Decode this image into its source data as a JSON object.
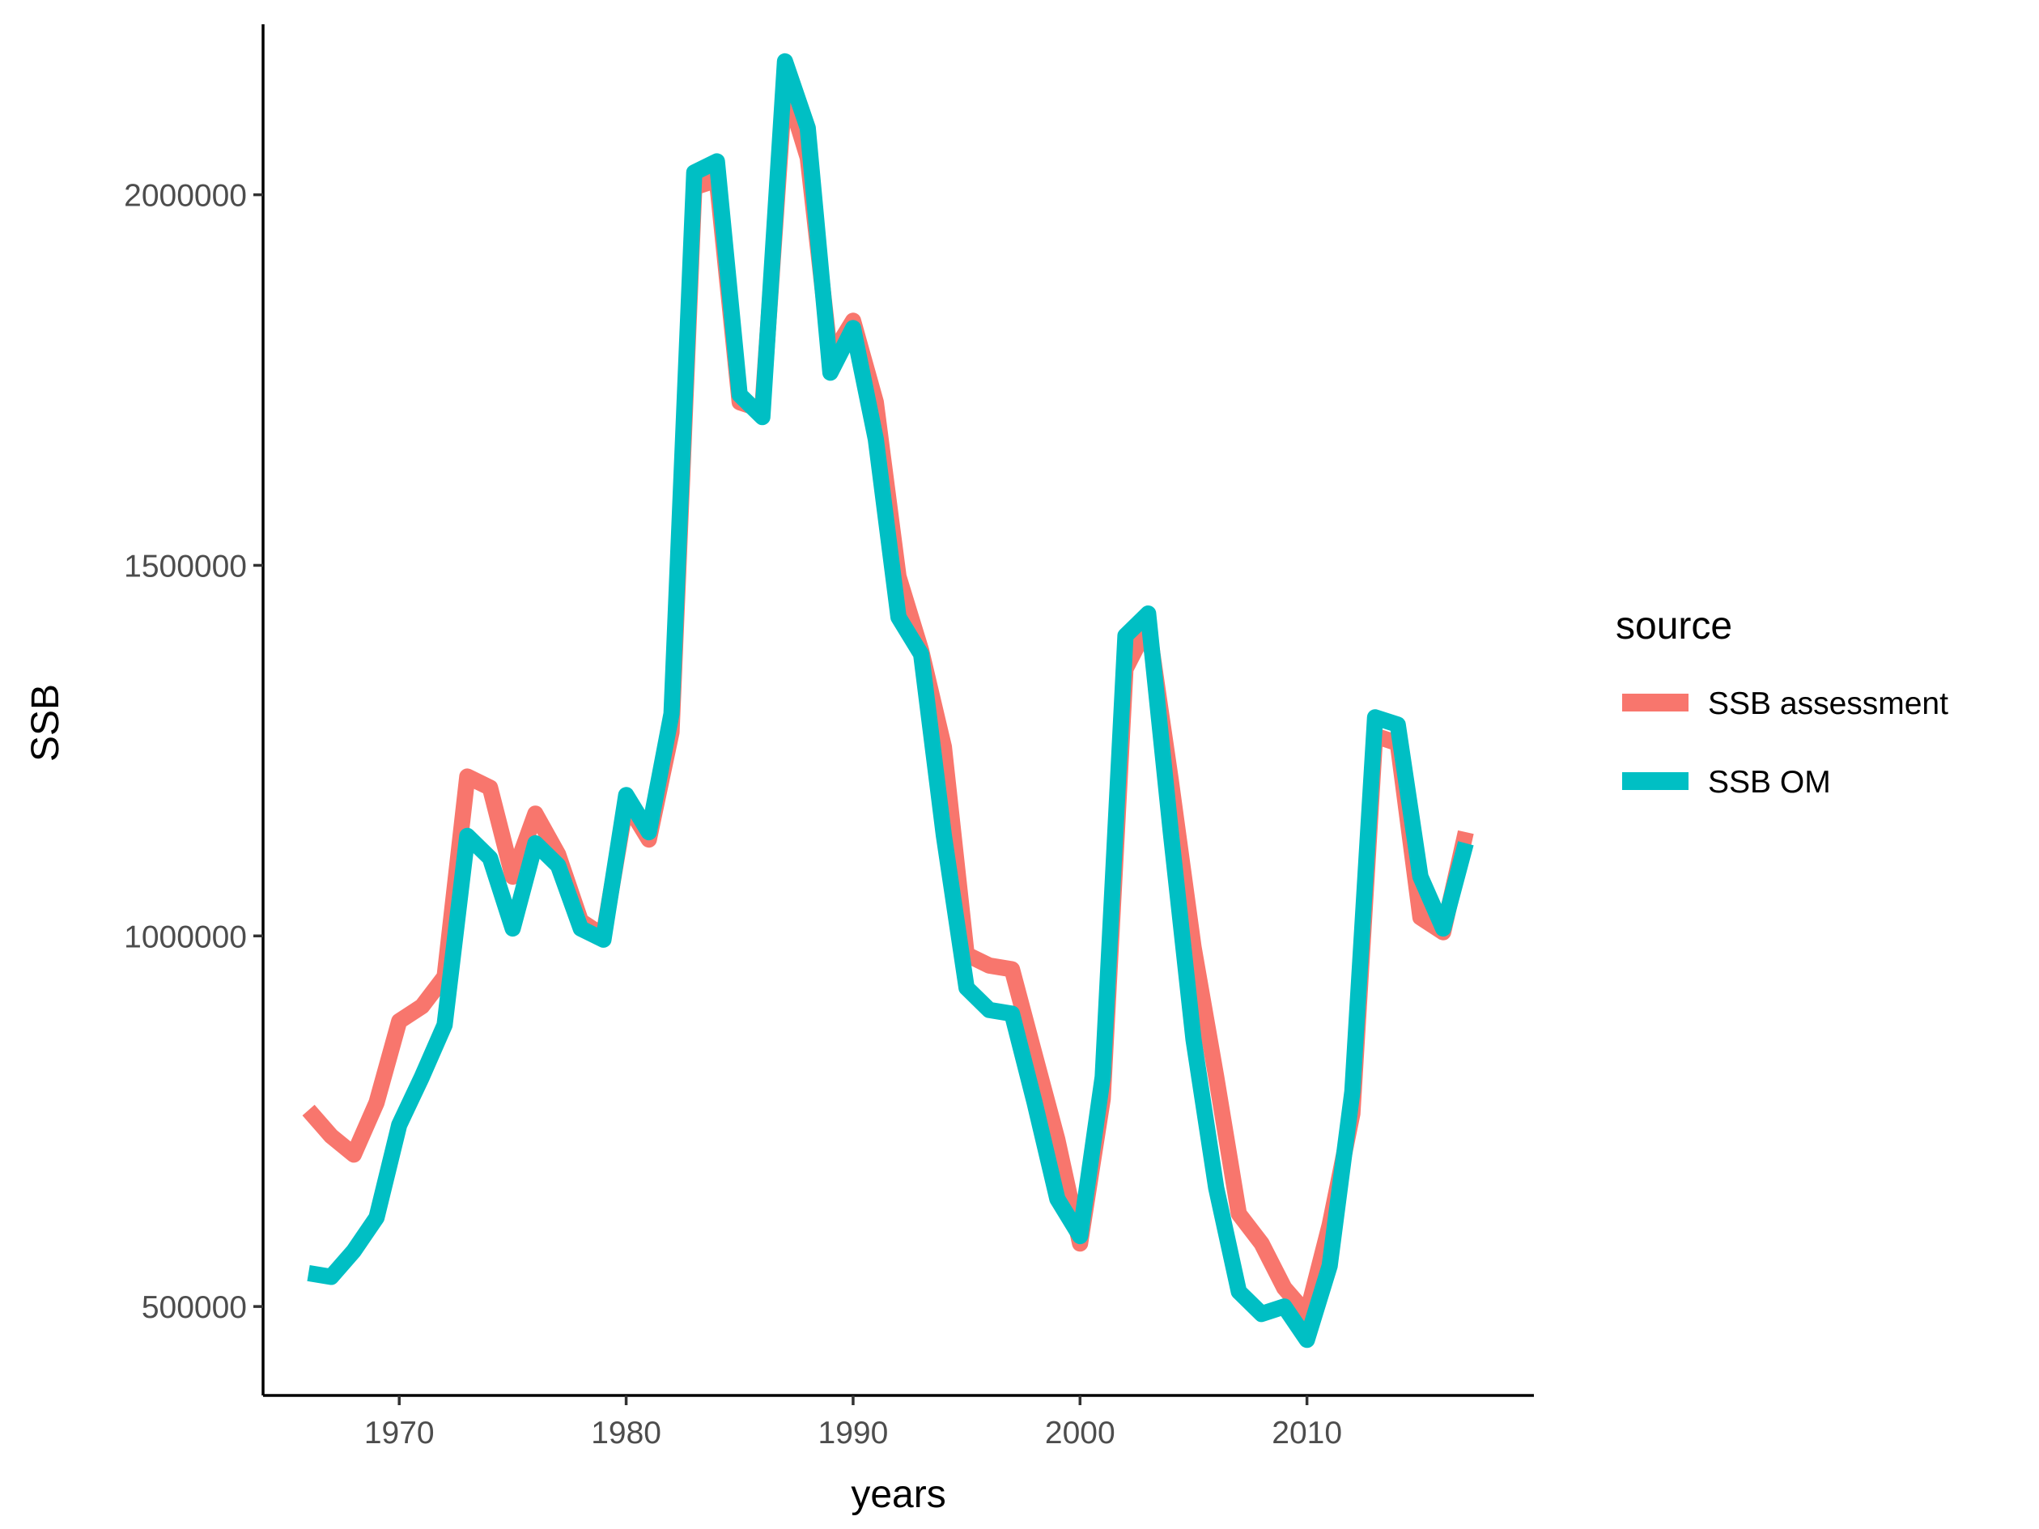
{
  "chart_data": {
    "type": "line",
    "xlabel": "years",
    "ylabel": "SSB",
    "xlim": [
      1964,
      2020
    ],
    "ylim": [
      380000,
      2230000
    ],
    "x_ticks": [
      1970,
      1980,
      1990,
      2000,
      2010
    ],
    "x_tick_labels": [
      "1970",
      "1980",
      "1990",
      "2000",
      "2010"
    ],
    "y_ticks": [
      500000,
      1000000,
      1500000,
      2000000
    ],
    "y_tick_labels": [
      "500000",
      "1000000",
      "1500000",
      "2000000"
    ],
    "grid": false,
    "legend": {
      "title": "source",
      "position": "right"
    },
    "x": [
      1966,
      1967,
      1968,
      1969,
      1970,
      1971,
      1972,
      1973,
      1974,
      1975,
      1976,
      1977,
      1978,
      1979,
      1980,
      1981,
      1982,
      1983,
      1984,
      1985,
      1986,
      1987,
      1988,
      1989,
      1990,
      1991,
      1992,
      1993,
      1994,
      1995,
      1996,
      1997,
      1998,
      1999,
      2000,
      2001,
      2002,
      2003,
      2004,
      2005,
      2006,
      2007,
      2008,
      2009,
      2010,
      2011,
      2012,
      2013,
      2014,
      2015,
      2016,
      2017
    ],
    "series": [
      {
        "name": "SSB assessment",
        "color": "#F8766D",
        "values": [
          765000,
          730000,
          705000,
          775000,
          885000,
          905000,
          945000,
          1215000,
          1200000,
          1080000,
          1165000,
          1110000,
          1020000,
          1000000,
          1180000,
          1130000,
          1275000,
          2010000,
          2020000,
          1720000,
          1710000,
          2150000,
          2050000,
          1780000,
          1830000,
          1720000,
          1485000,
          1385000,
          1255000,
          975000,
          960000,
          955000,
          840000,
          725000,
          585000,
          780000,
          1360000,
          1420000,
          1210000,
          985000,
          810000,
          625000,
          585000,
          525000,
          490000,
          610000,
          760000,
          1270000,
          1260000,
          1025000,
          1005000,
          1140000
        ]
      },
      {
        "name": "SSB OM",
        "color": "#00BFC4",
        "values": [
          545000,
          540000,
          575000,
          620000,
          745000,
          810000,
          880000,
          1135000,
          1105000,
          1010000,
          1125000,
          1095000,
          1010000,
          995000,
          1190000,
          1140000,
          1300000,
          2030000,
          2045000,
          1730000,
          1700000,
          2180000,
          2090000,
          1760000,
          1820000,
          1670000,
          1430000,
          1380000,
          1135000,
          930000,
          900000,
          895000,
          775000,
          645000,
          595000,
          810000,
          1405000,
          1435000,
          1140000,
          860000,
          660000,
          520000,
          490000,
          500000,
          455000,
          555000,
          790000,
          1295000,
          1285000,
          1080000,
          1010000,
          1125000
        ]
      }
    ]
  }
}
